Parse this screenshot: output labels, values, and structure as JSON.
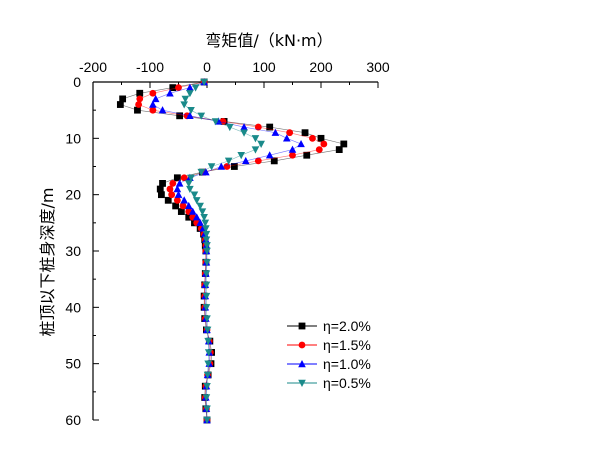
{
  "chart_data": {
    "type": "scatter",
    "xlabel": "弯矩值/（kN·m）",
    "ylabel": "桩顶以下桩身深度/m",
    "xlim": [
      -200,
      300
    ],
    "ylim": [
      0,
      60
    ],
    "x_ticks": [
      "-200",
      "-100",
      "0",
      "100",
      "200",
      "300"
    ],
    "y_ticks": [
      "0",
      "10",
      "20",
      "30",
      "40",
      "50",
      "60"
    ],
    "x_tick_values": [
      -200,
      -100,
      0,
      100,
      200,
      300
    ],
    "y_tick_values": [
      0,
      10,
      20,
      30,
      40,
      50,
      60
    ],
    "legend_position": "lower-right",
    "series": [
      {
        "name": "η=2.0%",
        "marker": "square",
        "color": "#000000",
        "points": [
          [
            -5,
            0
          ],
          [
            -60,
            1
          ],
          [
            -118,
            2
          ],
          [
            -148,
            3
          ],
          [
            -152,
            4
          ],
          [
            -122,
            5
          ],
          [
            -48,
            6
          ],
          [
            30,
            7
          ],
          [
            110,
            8
          ],
          [
            172,
            9
          ],
          [
            200,
            10
          ],
          [
            240,
            11
          ],
          [
            232,
            12
          ],
          [
            175,
            13
          ],
          [
            118,
            14
          ],
          [
            48,
            15
          ],
          [
            -8,
            16
          ],
          [
            -52,
            17
          ],
          [
            -78,
            18
          ],
          [
            -82,
            19
          ],
          [
            -80,
            20
          ],
          [
            -68,
            21
          ],
          [
            -55,
            22
          ],
          [
            -45,
            23
          ],
          [
            -32,
            24
          ],
          [
            -22,
            25
          ],
          [
            -12,
            26
          ],
          [
            -6,
            27
          ],
          [
            -4,
            28
          ],
          [
            -3,
            29
          ],
          [
            -2,
            30
          ],
          [
            -2,
            32
          ],
          [
            -3,
            34
          ],
          [
            -4,
            36
          ],
          [
            -5,
            38
          ],
          [
            -5,
            40
          ],
          [
            -4,
            42
          ],
          [
            -1,
            44
          ],
          [
            5,
            46
          ],
          [
            8,
            48
          ],
          [
            7,
            50
          ],
          [
            2,
            52
          ],
          [
            -3,
            54
          ],
          [
            -4,
            56
          ],
          [
            -2,
            58
          ],
          [
            0,
            60
          ]
        ]
      },
      {
        "name": "η=1.5%",
        "marker": "circle",
        "color": "#ff0000",
        "points": [
          [
            -5,
            0
          ],
          [
            -50,
            1
          ],
          [
            -95,
            2
          ],
          [
            -118,
            3
          ],
          [
            -120,
            4
          ],
          [
            -95,
            5
          ],
          [
            -35,
            6
          ],
          [
            28,
            7
          ],
          [
            90,
            8
          ],
          [
            145,
            9
          ],
          [
            185,
            10
          ],
          [
            205,
            11
          ],
          [
            197,
            12
          ],
          [
            150,
            13
          ],
          [
            90,
            14
          ],
          [
            35,
            15
          ],
          [
            -5,
            16
          ],
          [
            -40,
            17
          ],
          [
            -60,
            18
          ],
          [
            -65,
            19
          ],
          [
            -62,
            20
          ],
          [
            -52,
            21
          ],
          [
            -42,
            22
          ],
          [
            -32,
            23
          ],
          [
            -25,
            24
          ],
          [
            -18,
            25
          ],
          [
            -10,
            26
          ],
          [
            -5,
            27
          ],
          [
            -3,
            28
          ],
          [
            -2,
            29
          ],
          [
            -2,
            30
          ],
          [
            -2,
            32
          ],
          [
            -3,
            34
          ],
          [
            -4,
            36
          ],
          [
            -4,
            38
          ],
          [
            -4,
            40
          ],
          [
            -3,
            42
          ],
          [
            0,
            44
          ],
          [
            4,
            46
          ],
          [
            6,
            48
          ],
          [
            5,
            50
          ],
          [
            1,
            52
          ],
          [
            -2,
            54
          ],
          [
            -3,
            56
          ],
          [
            -1,
            58
          ],
          [
            0,
            60
          ]
        ]
      },
      {
        "name": "η=1.0%",
        "marker": "triangle-up",
        "color": "#0000ff",
        "points": [
          [
            -5,
            0
          ],
          [
            -30,
            1
          ],
          [
            -65,
            2
          ],
          [
            -90,
            3
          ],
          [
            -95,
            4
          ],
          [
            -78,
            5
          ],
          [
            -30,
            6
          ],
          [
            20,
            7
          ],
          [
            65,
            8
          ],
          [
            120,
            9
          ],
          [
            140,
            10
          ],
          [
            165,
            11
          ],
          [
            150,
            12
          ],
          [
            110,
            13
          ],
          [
            68,
            14
          ],
          [
            25,
            15
          ],
          [
            -2,
            16
          ],
          [
            -30,
            17
          ],
          [
            -48,
            18
          ],
          [
            -52,
            19
          ],
          [
            -50,
            20
          ],
          [
            -40,
            21
          ],
          [
            -32,
            22
          ],
          [
            -25,
            23
          ],
          [
            -18,
            24
          ],
          [
            -12,
            25
          ],
          [
            -7,
            26
          ],
          [
            -4,
            27
          ],
          [
            -2,
            28
          ],
          [
            -1,
            29
          ],
          [
            -1,
            30
          ],
          [
            -1,
            32
          ],
          [
            -2,
            34
          ],
          [
            -3,
            36
          ],
          [
            -3,
            38
          ],
          [
            -3,
            40
          ],
          [
            -2,
            42
          ],
          [
            0,
            44
          ],
          [
            3,
            46
          ],
          [
            4,
            48
          ],
          [
            4,
            50
          ],
          [
            1,
            52
          ],
          [
            -1,
            54
          ],
          [
            -2,
            56
          ],
          [
            -1,
            58
          ],
          [
            0,
            60
          ]
        ]
      },
      {
        "name": "η=0.5%",
        "marker": "triangle-down",
        "color": "#1a8a8a",
        "points": [
          [
            -5,
            0
          ],
          [
            -20,
            1
          ],
          [
            -30,
            2
          ],
          [
            -38,
            3
          ],
          [
            -40,
            4
          ],
          [
            -28,
            5
          ],
          [
            -10,
            6
          ],
          [
            15,
            7
          ],
          [
            40,
            8
          ],
          [
            65,
            9
          ],
          [
            85,
            10
          ],
          [
            95,
            11
          ],
          [
            85,
            12
          ],
          [
            60,
            13
          ],
          [
            38,
            14
          ],
          [
            8,
            15
          ],
          [
            -10,
            16
          ],
          [
            -28,
            17
          ],
          [
            -32,
            18
          ],
          [
            -30,
            19
          ],
          [
            -22,
            20
          ],
          [
            -18,
            21
          ],
          [
            -12,
            22
          ],
          [
            -8,
            23
          ],
          [
            -5,
            24
          ],
          [
            -3,
            25
          ],
          [
            -2,
            26
          ],
          [
            -1,
            27
          ],
          [
            -1,
            28
          ],
          [
            0,
            29
          ],
          [
            0,
            30
          ],
          [
            0,
            32
          ],
          [
            -1,
            34
          ],
          [
            -1,
            36
          ],
          [
            -1,
            38
          ],
          [
            -1,
            40
          ],
          [
            0,
            42
          ],
          [
            1,
            44
          ],
          [
            2,
            46
          ],
          [
            3,
            48
          ],
          [
            2,
            50
          ],
          [
            1,
            52
          ],
          [
            0,
            54
          ],
          [
            -1,
            56
          ],
          [
            0,
            58
          ],
          [
            0,
            60
          ]
        ]
      }
    ]
  }
}
